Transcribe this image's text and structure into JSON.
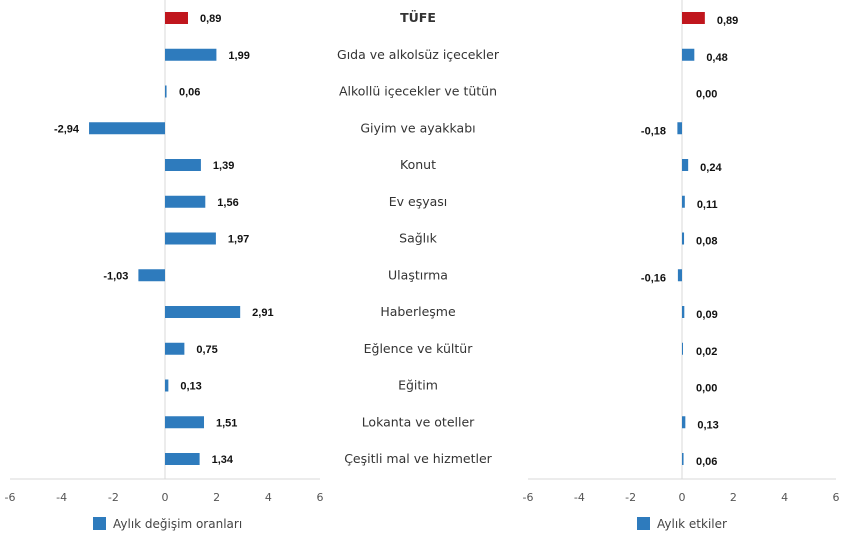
{
  "chart_data": [
    {
      "type": "bar",
      "orientation": "horizontal",
      "categories": [
        "TÜFE",
        "Gıda ve alkolsüz içecekler",
        "Alkollü içecekler ve tütün",
        "Giyim ve ayakkabı",
        "Konut",
        "Ev eşyası",
        "Sağlık",
        "Ulaştırma",
        "Haberleşme",
        "Eğlence ve kültür",
        "Eğitim",
        "Lokanta ve oteller",
        "Çeşitli mal ve hizmetler"
      ],
      "series": [
        {
          "name": "Aylık değişim oranları",
          "values": [
            0.89,
            1.99,
            0.06,
            -2.94,
            1.39,
            1.56,
            1.97,
            -1.03,
            2.91,
            0.75,
            0.13,
            1.51,
            1.34
          ],
          "labels": [
            "0,89",
            "1,99",
            "0,06",
            "-2,94",
            "1,39",
            "1,56",
            "1,97",
            "-1,03",
            "2,91",
            "0,75",
            "0,13",
            "1,51",
            "1,34"
          ]
        }
      ],
      "xlim": [
        -6,
        6
      ],
      "ticks": [
        "-6",
        "-4",
        "-2",
        "0",
        "2",
        "4",
        "6"
      ],
      "grid": false,
      "legend": "bottom"
    },
    {
      "type": "bar",
      "orientation": "horizontal",
      "series": [
        {
          "name": "Aylık etkiler",
          "values": [
            0.89,
            0.48,
            0.0,
            -0.18,
            0.24,
            0.11,
            0.08,
            -0.16,
            0.09,
            0.02,
            0.0,
            0.13,
            0.06
          ],
          "labels": [
            "0,89",
            "0,48",
            "0,00",
            "-0,18",
            "0,24",
            "0,11",
            "0,08",
            "-0,16",
            "0,09",
            "0,02",
            "0,00",
            "0,13",
            "0,06"
          ]
        }
      ],
      "xlim": [
        -6,
        6
      ],
      "ticks": [
        "-6",
        "-4",
        "-2",
        "0",
        "2",
        "4",
        "6"
      ],
      "grid": false,
      "legend": "bottom"
    }
  ],
  "colors": {
    "highlight": "#c0161d",
    "bar": "#2e7bbd",
    "axis": "#d9d9d9"
  }
}
